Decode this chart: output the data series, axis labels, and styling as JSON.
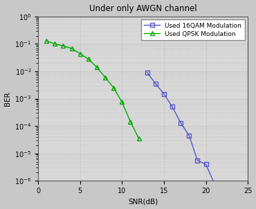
{
  "title": "Under only AWGN channel",
  "xlabel": "SNR(dB)",
  "ylabel": "BER",
  "xlim": [
    0,
    25
  ],
  "ylim_log": [
    -6,
    0
  ],
  "qpsk_snr": [
    1,
    2,
    3,
    4,
    5,
    6,
    7,
    8,
    9,
    10,
    11,
    12
  ],
  "qpsk_ber": [
    0.13,
    0.1,
    0.085,
    0.068,
    0.044,
    0.028,
    0.014,
    0.006,
    0.0025,
    0.00075,
    0.000145,
    3.5e-05
  ],
  "qam16_snr": [
    13,
    14,
    15,
    16,
    17,
    18,
    19,
    20,
    21
  ],
  "qam16_ber": [
    0.009,
    0.0035,
    0.0015,
    0.0005,
    0.00013,
    4.5e-05,
    5.5e-06,
    4e-06,
    8e-07
  ],
  "qpsk_color": "#00aa00",
  "qam16_color": "#5555cc",
  "plot_bg_color": "#d8d8d8",
  "fig_bg_color": "#c8c8c8",
  "legend_16qam": "Used 16QAM Modulation",
  "legend_qpsk": "Used QPSK Modulation",
  "title_fontsize": 8.5,
  "label_fontsize": 7.5,
  "tick_fontsize": 7,
  "legend_fontsize": 6.5
}
